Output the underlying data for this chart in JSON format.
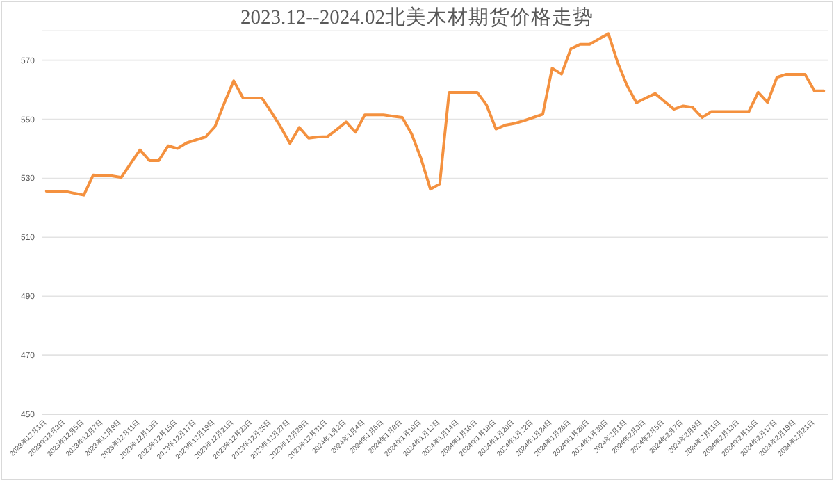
{
  "chart_data": {
    "type": "line",
    "title": "2023.12--2024.02北美木材期货价格走势",
    "categories": [
      "2023年12月1日",
      null,
      "2023年12月3日",
      null,
      "2023年12月5日",
      null,
      "2023年12月7日",
      null,
      "2023年12月9日",
      null,
      "2023年12月11日",
      null,
      "2023年12月13日",
      null,
      "2023年12月15日",
      null,
      "2023年12月17日",
      null,
      "2023年12月19日",
      null,
      "2023年12月21日",
      null,
      "2023年12月23日",
      null,
      "2023年12月25日",
      null,
      "2023年12月27日",
      null,
      "2023年12月29日",
      null,
      "2023年12月31日",
      null,
      "2024年1月2日",
      null,
      "2024年1月4日",
      null,
      "2024年1月6日",
      null,
      "2024年1月8日",
      null,
      "2024年1月10日",
      null,
      "2024年1月12日",
      null,
      "2024年1月14日",
      null,
      "2024年1月16日",
      null,
      "2024年1月18日",
      null,
      "2024年1月20日",
      null,
      "2024年1月22日",
      null,
      "2024年1月24日",
      null,
      "2024年1月26日",
      null,
      "2024年1月28日",
      null,
      "2024年1月30日",
      null,
      "2024年2月1日",
      null,
      "2024年2月3日",
      null,
      "2024年2月5日",
      null,
      "2024年2月7日",
      null,
      "2024年2月9日",
      null,
      "2024年2月11日",
      null,
      "2024年2月13日",
      null,
      "2024年2月15日",
      null,
      "2024年2月17日",
      null,
      "2024年2月19日",
      null,
      "2024年2月21日",
      null
    ],
    "series": [
      {
        "color": "#f4913f",
        "values": [
          525.6,
          525.6,
          525.6,
          524.9,
          524.3,
          531.1,
          530.8,
          530.8,
          530.3,
          535,
          539.6,
          536,
          536,
          541,
          540.1,
          542,
          543,
          544,
          547.5,
          555.5,
          563,
          557.2,
          557.2,
          557.2,
          552.5,
          547.5,
          541.8,
          547.2,
          543.6,
          544,
          544.1,
          546.5,
          549.1,
          545.6,
          551.5,
          551.5,
          551.5,
          551,
          550.6,
          545,
          536.7,
          526.3,
          528.1,
          559.1,
          559.1,
          559.1,
          559.1,
          554.8,
          546.7,
          548,
          548.6,
          549.5,
          550.6,
          551.7,
          567.3,
          565.3,
          573.9,
          575.4,
          575.4,
          577.2,
          579,
          569.2,
          561.4,
          555.6,
          557.2,
          558.7,
          556,
          553.4,
          554.5,
          554,
          550.6,
          552.6,
          552.6,
          552.6,
          552.6,
          552.6,
          559.1,
          555.7,
          564.2,
          565.2,
          565.2,
          565.2,
          559.6,
          559.6
        ]
      }
    ],
    "ylim": [
      450,
      580
    ],
    "yticks": [
      450,
      470,
      490,
      510,
      530,
      550,
      570
    ],
    "grid": "y",
    "marker": "none",
    "line_style": "solid"
  }
}
